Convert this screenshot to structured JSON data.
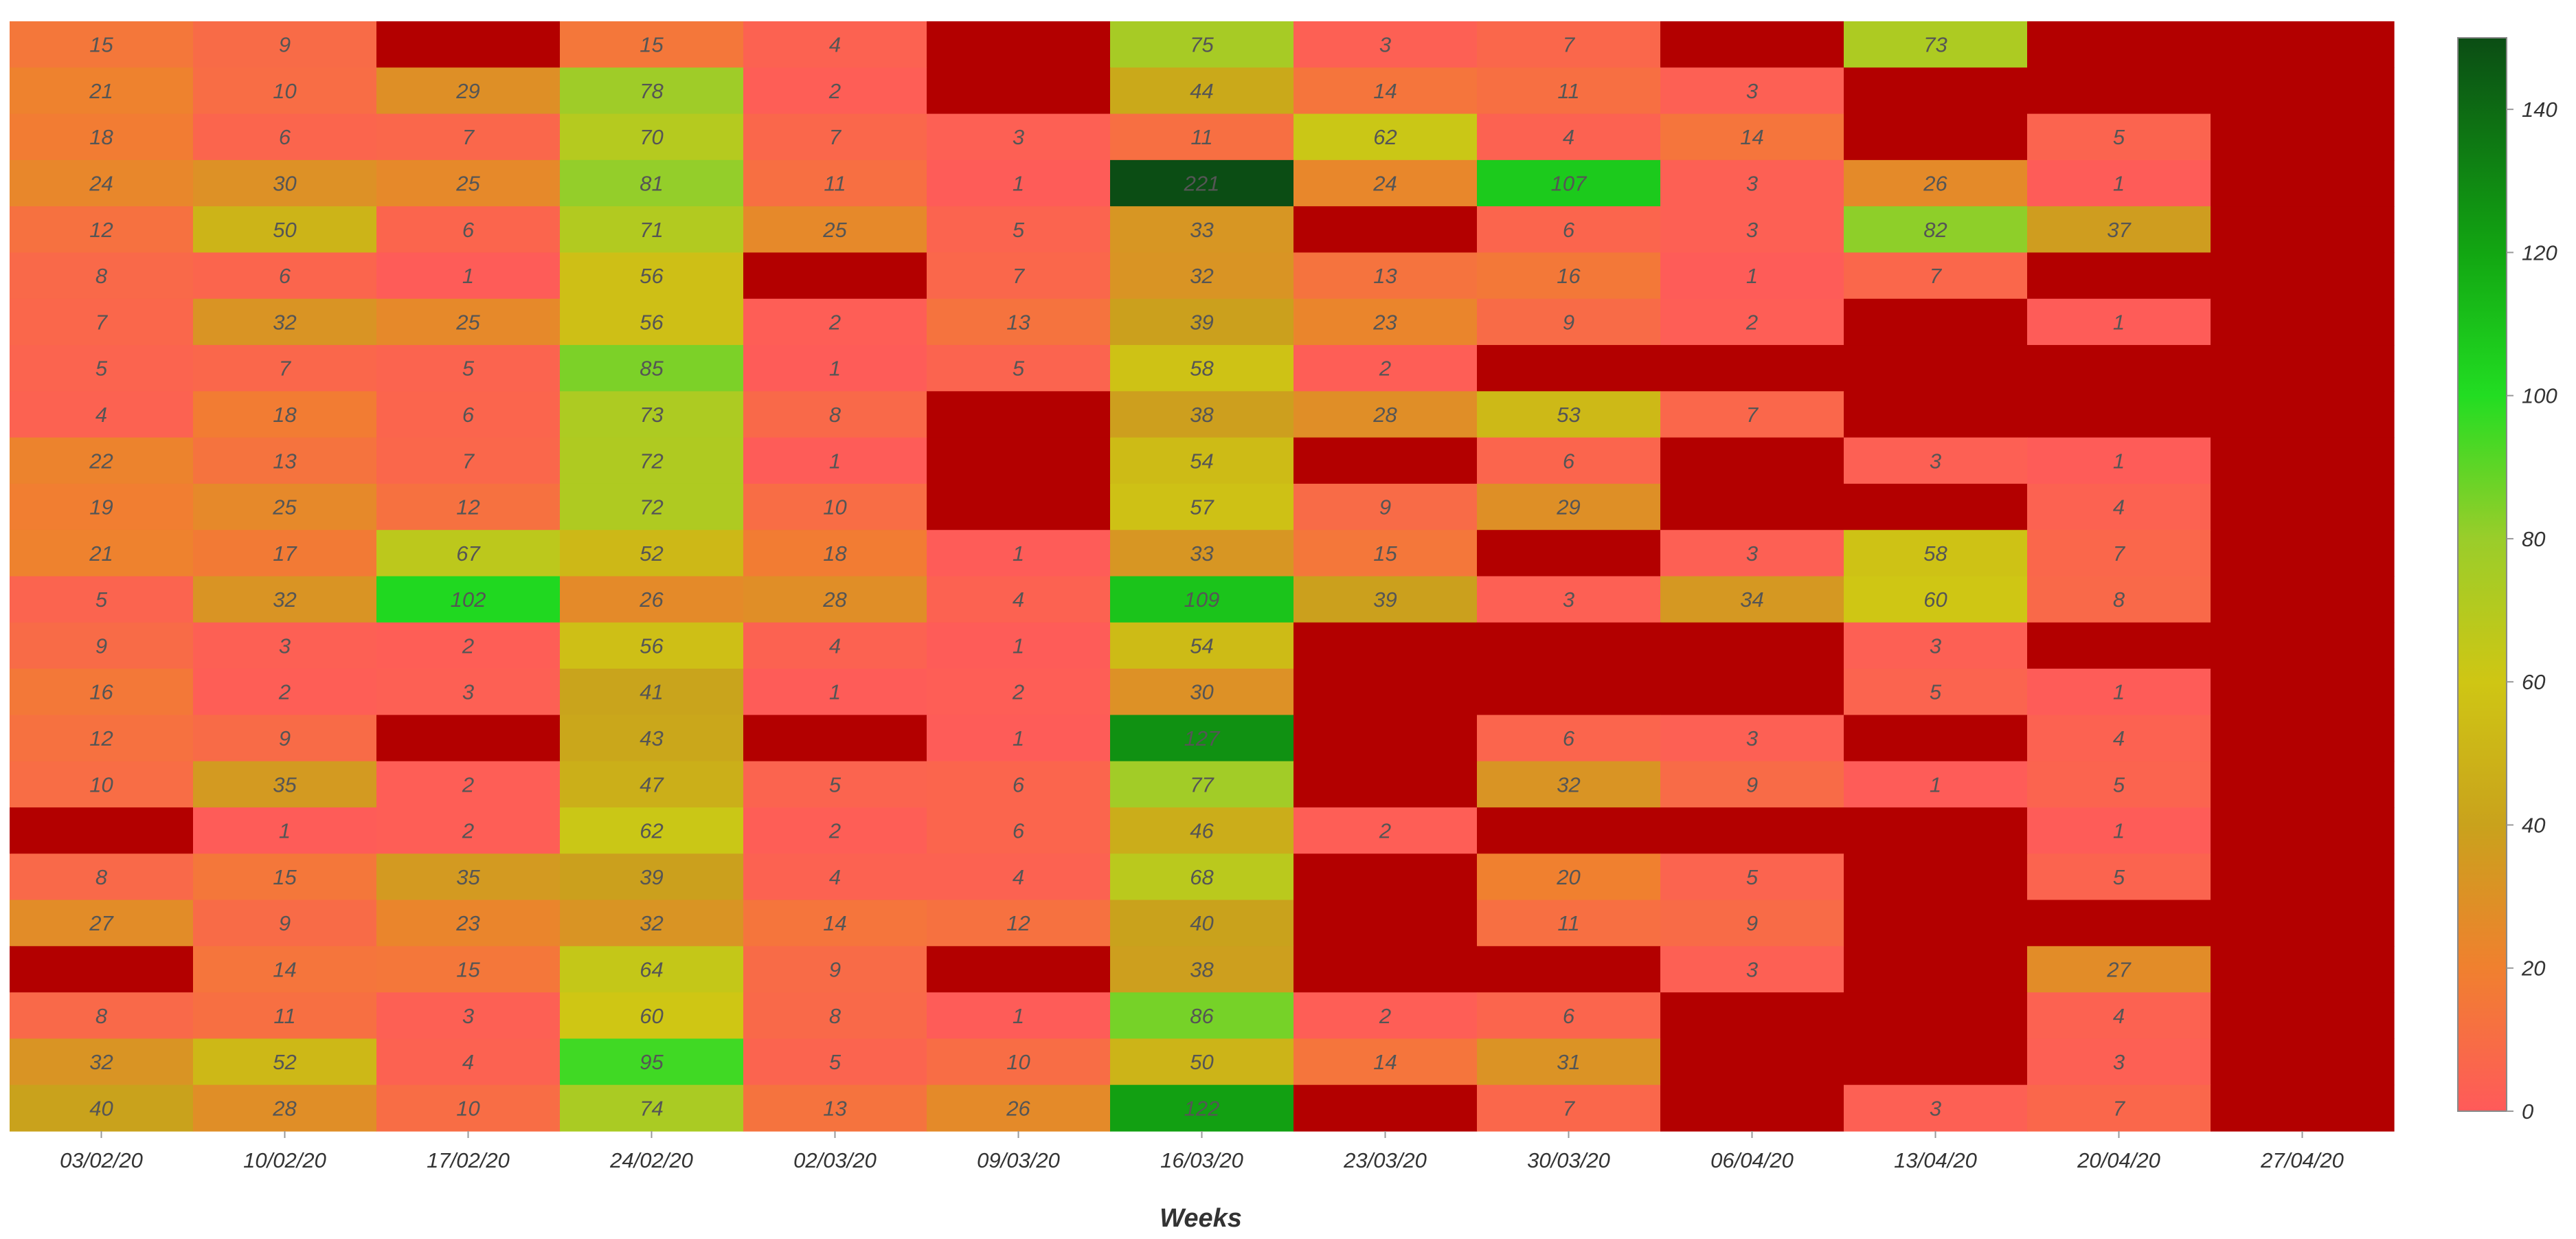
{
  "chart_data": {
    "type": "heatmap",
    "title": "",
    "xlabel": "Weeks",
    "ylabel": "",
    "x": [
      "03/02/20",
      "10/02/20",
      "17/02/20",
      "24/02/20",
      "02/03/20",
      "09/03/20",
      "16/03/20",
      "23/03/20",
      "30/03/20",
      "06/04/20",
      "13/04/20",
      "20/04/20",
      "27/04/20"
    ],
    "rows": [
      [
        15,
        9,
        null,
        15,
        4,
        null,
        75,
        3,
        7,
        null,
        73,
        null,
        null
      ],
      [
        21,
        10,
        29,
        78,
        2,
        null,
        44,
        14,
        11,
        3,
        null,
        null,
        null
      ],
      [
        18,
        6,
        7,
        70,
        7,
        3,
        11,
        62,
        4,
        14,
        null,
        5,
        null
      ],
      [
        24,
        30,
        25,
        81,
        11,
        1,
        221,
        24,
        107,
        3,
        26,
        1,
        null
      ],
      [
        12,
        50,
        6,
        71,
        25,
        5,
        33,
        null,
        6,
        3,
        82,
        37,
        null
      ],
      [
        8,
        6,
        1,
        56,
        null,
        7,
        32,
        13,
        16,
        1,
        7,
        null,
        null
      ],
      [
        7,
        32,
        25,
        56,
        2,
        13,
        39,
        23,
        9,
        2,
        null,
        1,
        null
      ],
      [
        5,
        7,
        5,
        85,
        1,
        5,
        58,
        2,
        null,
        null,
        null,
        null,
        null
      ],
      [
        4,
        18,
        6,
        73,
        8,
        null,
        38,
        28,
        53,
        7,
        null,
        null,
        null
      ],
      [
        22,
        13,
        7,
        72,
        1,
        null,
        54,
        null,
        6,
        null,
        3,
        1,
        null
      ],
      [
        19,
        25,
        12,
        72,
        10,
        null,
        57,
        9,
        29,
        null,
        null,
        4,
        null
      ],
      [
        21,
        17,
        67,
        52,
        18,
        1,
        33,
        15,
        null,
        3,
        58,
        7,
        null
      ],
      [
        5,
        32,
        102,
        26,
        28,
        4,
        109,
        39,
        3,
        34,
        60,
        8,
        null
      ],
      [
        9,
        3,
        2,
        56,
        4,
        1,
        54,
        null,
        null,
        null,
        3,
        null,
        null
      ],
      [
        16,
        2,
        3,
        41,
        1,
        2,
        30,
        null,
        null,
        null,
        5,
        1,
        null
      ],
      [
        12,
        9,
        null,
        43,
        null,
        1,
        127,
        null,
        6,
        3,
        null,
        4,
        null
      ],
      [
        10,
        35,
        2,
        47,
        5,
        6,
        77,
        null,
        32,
        9,
        1,
        5,
        null
      ],
      [
        null,
        1,
        2,
        62,
        2,
        6,
        46,
        2,
        null,
        null,
        null,
        1,
        null
      ],
      [
        8,
        15,
        35,
        39,
        4,
        4,
        68,
        null,
        20,
        5,
        null,
        5,
        null
      ],
      [
        27,
        9,
        23,
        32,
        14,
        12,
        40,
        null,
        11,
        9,
        null,
        null,
        null
      ],
      [
        null,
        14,
        15,
        64,
        9,
        null,
        38,
        null,
        null,
        3,
        null,
        27,
        null
      ],
      [
        8,
        11,
        3,
        60,
        8,
        1,
        86,
        2,
        6,
        null,
        null,
        4,
        null
      ],
      [
        32,
        52,
        4,
        95,
        5,
        10,
        50,
        14,
        31,
        null,
        null,
        3,
        null
      ],
      [
        40,
        28,
        10,
        74,
        13,
        26,
        122,
        null,
        7,
        null,
        3,
        7,
        null
      ]
    ],
    "colorbar": {
      "range": [
        0,
        150
      ],
      "ticks": [
        0,
        20,
        40,
        60,
        80,
        100,
        120,
        140
      ],
      "stops": [
        {
          "value": 0,
          "color": "#ff5a5a"
        },
        {
          "value": 20,
          "color": "#f0802f"
        },
        {
          "value": 40,
          "color": "#c9a21c"
        },
        {
          "value": 60,
          "color": "#cfc614"
        },
        {
          "value": 80,
          "color": "#9acd2a"
        },
        {
          "value": 100,
          "color": "#22dd22"
        },
        {
          "value": 120,
          "color": "#12a612"
        },
        {
          "value": 150,
          "color": "#0b4d14"
        }
      ]
    },
    "missing_color": "#b30000",
    "grid": false,
    "legend": "right"
  }
}
